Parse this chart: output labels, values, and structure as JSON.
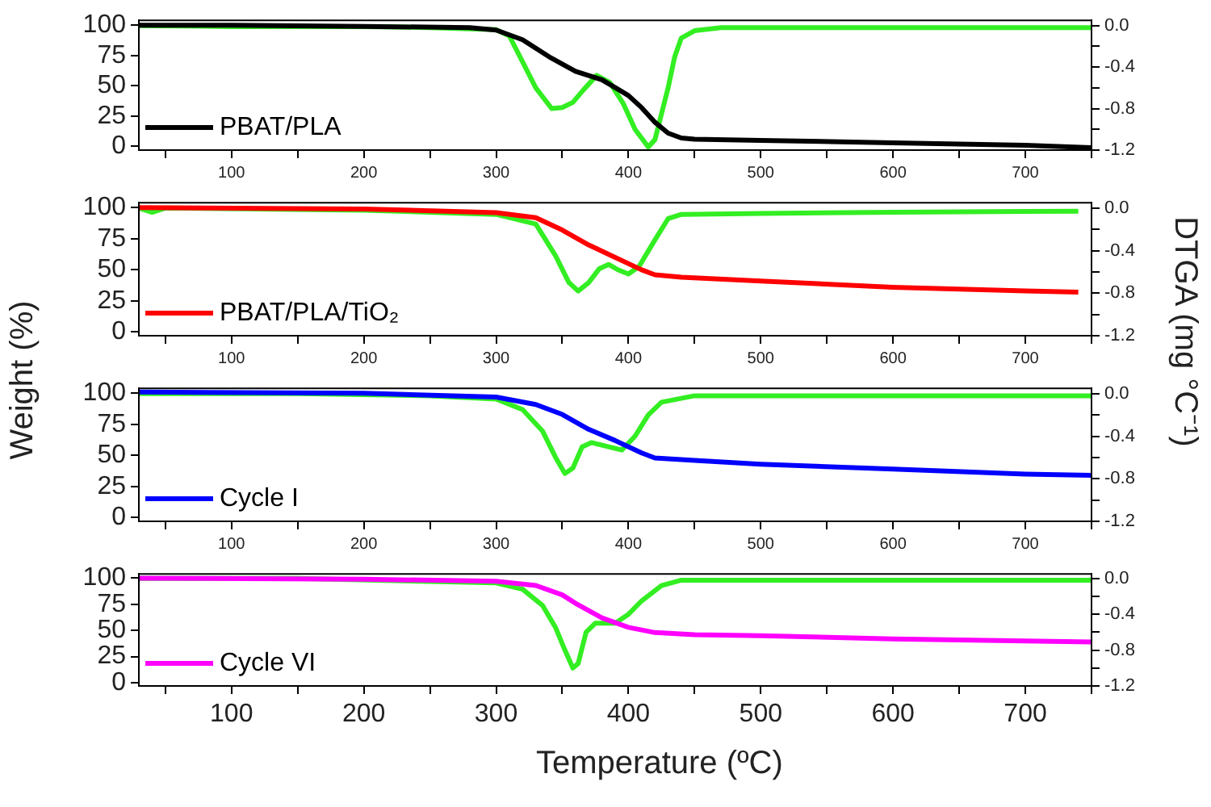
{
  "chart_data": [
    {
      "type": "line",
      "xlim": [
        30,
        750
      ],
      "ylim": [
        -3,
        104
      ],
      "y2lim": [
        -1.2,
        0.05
      ],
      "xticks": [
        {
          "value": 50,
          "label": null
        },
        100,
        {
          "value": 150,
          "label": null
        },
        200,
        {
          "value": 250,
          "label": null
        },
        300,
        {
          "value": 350,
          "label": null
        },
        400,
        {
          "value": 450,
          "label": null
        },
        500,
        {
          "value": 550,
          "label": null
        },
        600,
        {
          "value": 650,
          "label": null
        },
        700,
        {
          "value": 750,
          "label": null
        }
      ],
      "yticks": [
        0,
        25,
        50,
        75,
        100
      ],
      "y2ticks": [
        {
          "value": -1.2,
          "label": "-1.2"
        },
        {
          "value": -1.0,
          "label": null
        },
        {
          "value": -0.8,
          "label": "-0.8"
        },
        {
          "value": -0.6,
          "label": null
        },
        {
          "value": -0.4,
          "label": "-0.4"
        },
        {
          "value": -0.2,
          "label": null
        },
        {
          "value": 0,
          "label": "0.0"
        }
      ],
      "grid": false,
      "legend": "bottom left",
      "series": [
        {
          "name": "PBAT/PLA",
          "color": "#000000",
          "axis": "y",
          "x": [
            30,
            100,
            200,
            280,
            300,
            320,
            340,
            360,
            380,
            400,
            410,
            420,
            430,
            440,
            450,
            500,
            600,
            700,
            750
          ],
          "values": [
            100,
            100,
            99,
            98,
            96,
            88,
            74,
            62,
            55,
            42,
            32,
            20,
            11,
            7,
            6,
            5,
            3,
            1,
            -1
          ]
        },
        {
          "color": "#33ee22",
          "axis": "y2",
          "x": [
            30,
            100,
            200,
            250,
            300,
            310,
            320,
            330,
            342,
            350,
            358,
            366,
            376,
            386,
            396,
            405,
            415,
            420,
            430,
            435,
            440,
            450,
            470,
            500,
            600,
            700,
            750
          ],
          "values": [
            0,
            -0.01,
            -0.01,
            -0.02,
            -0.04,
            -0.1,
            -0.35,
            -0.6,
            -0.8,
            -0.79,
            -0.74,
            -0.62,
            -0.48,
            -0.55,
            -0.75,
            -1.0,
            -1.17,
            -1.1,
            -0.6,
            -0.3,
            -0.12,
            -0.05,
            -0.02,
            -0.02,
            -0.02,
            -0.02,
            -0.02
          ]
        }
      ]
    },
    {
      "type": "line",
      "xlim": [
        30,
        750
      ],
      "ylim": [
        -3,
        104
      ],
      "y2lim": [
        -1.2,
        0.05
      ],
      "xticks": [
        {
          "value": 50,
          "label": null
        },
        100,
        {
          "value": 150,
          "label": null
        },
        200,
        {
          "value": 250,
          "label": null
        },
        300,
        {
          "value": 350,
          "label": null
        },
        400,
        {
          "value": 450,
          "label": null
        },
        500,
        {
          "value": 550,
          "label": null
        },
        600,
        {
          "value": 650,
          "label": null
        },
        700,
        {
          "value": 750,
          "label": null
        }
      ],
      "yticks": [
        0,
        25,
        50,
        75,
        100
      ],
      "y2ticks": [
        {
          "value": -1.2,
          "label": "-1.2"
        },
        {
          "value": -1.0,
          "label": null
        },
        {
          "value": -0.8,
          "label": "-0.8"
        },
        {
          "value": -0.6,
          "label": null
        },
        {
          "value": -0.4,
          "label": "-0.4"
        },
        {
          "value": -0.2,
          "label": null
        },
        {
          "value": 0,
          "label": "0.0"
        }
      ],
      "grid": false,
      "legend": "bottom left",
      "ylabel": "Weight (%)",
      "y2label": "DTGA (mg °C⁻¹)",
      "series": [
        {
          "name": "PBAT/PLA/TiO₂",
          "color": "#ff0000",
          "axis": "y",
          "x": [
            30,
            200,
            300,
            330,
            350,
            370,
            390,
            410,
            420,
            440,
            500,
            600,
            700,
            740
          ],
          "values": [
            100,
            99,
            96,
            92,
            82,
            70,
            60,
            50,
            46,
            44,
            41,
            36,
            33,
            32
          ]
        },
        {
          "color": "#33ee22",
          "axis": "y2",
          "x": [
            30,
            40,
            50,
            200,
            300,
            330,
            345,
            355,
            362,
            370,
            378,
            385,
            392,
            400,
            408,
            420,
            430,
            440,
            500,
            600,
            740
          ],
          "values": [
            0,
            -0.04,
            0,
            -0.02,
            -0.06,
            -0.15,
            -0.45,
            -0.7,
            -0.78,
            -0.7,
            -0.57,
            -0.53,
            -0.58,
            -0.62,
            -0.55,
            -0.3,
            -0.1,
            -0.06,
            -0.05,
            -0.04,
            -0.03
          ]
        }
      ]
    },
    {
      "type": "line",
      "xlim": [
        30,
        750
      ],
      "ylim": [
        -3,
        104
      ],
      "y2lim": [
        -1.2,
        0.05
      ],
      "xticks": [
        {
          "value": 50,
          "label": null
        },
        100,
        {
          "value": 150,
          "label": null
        },
        200,
        {
          "value": 250,
          "label": null
        },
        300,
        {
          "value": 350,
          "label": null
        },
        400,
        {
          "value": 450,
          "label": null
        },
        500,
        {
          "value": 550,
          "label": null
        },
        600,
        {
          "value": 650,
          "label": null
        },
        700,
        {
          "value": 750,
          "label": null
        }
      ],
      "yticks": [
        0,
        25,
        50,
        75,
        100
      ],
      "y2ticks": [
        {
          "value": -1.2,
          "label": "-1.2"
        },
        {
          "value": -1.0,
          "label": null
        },
        {
          "value": -0.8,
          "label": "-0.8"
        },
        {
          "value": -0.6,
          "label": null
        },
        {
          "value": -0.4,
          "label": "-0.4"
        },
        {
          "value": -0.2,
          "label": null
        },
        {
          "value": 0,
          "label": "0.0"
        }
      ],
      "grid": false,
      "legend": "bottom left",
      "series": [
        {
          "name": "Cycle I",
          "color": "#0000ff",
          "axis": "y",
          "x": [
            30,
            200,
            300,
            330,
            350,
            370,
            390,
            410,
            420,
            450,
            500,
            600,
            700,
            750
          ],
          "values": [
            101,
            100,
            97,
            91,
            83,
            71,
            62,
            52,
            48,
            46,
            43,
            39,
            35,
            34
          ]
        },
        {
          "color": "#33ee22",
          "axis": "y2",
          "x": [
            30,
            150,
            250,
            300,
            320,
            335,
            345,
            352,
            358,
            365,
            372,
            385,
            395,
            405,
            415,
            425,
            450,
            600,
            750
          ],
          "values": [
            0,
            0,
            -0.02,
            -0.05,
            -0.15,
            -0.35,
            -0.6,
            -0.75,
            -0.7,
            -0.5,
            -0.46,
            -0.5,
            -0.53,
            -0.4,
            -0.2,
            -0.08,
            -0.02,
            -0.02,
            -0.02
          ]
        }
      ]
    },
    {
      "type": "line",
      "xlim": [
        30,
        750
      ],
      "ylim": [
        -3,
        104
      ],
      "y2lim": [
        -1.2,
        0.05
      ],
      "xlabel": "Temperature (ºC)",
      "xticks": [
        {
          "value": 50,
          "label": null
        },
        100,
        {
          "value": 150,
          "label": null
        },
        200,
        {
          "value": 250,
          "label": null
        },
        300,
        {
          "value": 350,
          "label": null
        },
        400,
        {
          "value": 450,
          "label": null
        },
        500,
        {
          "value": 550,
          "label": null
        },
        600,
        {
          "value": 650,
          "label": null
        },
        700,
        {
          "value": 750,
          "label": null
        }
      ],
      "yticks": [
        0,
        25,
        50,
        75,
        100
      ],
      "y2ticks": [
        {
          "value": -1.2,
          "label": "-1.2"
        },
        {
          "value": -1.0,
          "label": null
        },
        {
          "value": -0.8,
          "label": "-0.8"
        },
        {
          "value": -0.6,
          "label": null
        },
        {
          "value": -0.4,
          "label": "-0.4"
        },
        {
          "value": -0.2,
          "label": null
        },
        {
          "value": 0,
          "label": "0.0"
        }
      ],
      "grid": false,
      "legend": "bottom left",
      "series": [
        {
          "name": "Cycle VI",
          "color": "#ff00ff",
          "axis": "y",
          "x": [
            30,
            200,
            300,
            330,
            350,
            360,
            380,
            400,
            420,
            450,
            500,
            600,
            700,
            750
          ],
          "values": [
            100,
            99,
            97,
            93,
            84,
            76,
            62,
            53,
            48,
            46,
            45,
            42,
            40,
            39
          ]
        },
        {
          "color": "#33ee22",
          "axis": "y2",
          "x": [
            30,
            150,
            300,
            320,
            335,
            345,
            352,
            358,
            362,
            368,
            375,
            390,
            400,
            410,
            425,
            440,
            600,
            750
          ],
          "values": [
            0,
            0,
            -0.05,
            -0.12,
            -0.3,
            -0.55,
            -0.8,
            -1.0,
            -0.95,
            -0.6,
            -0.5,
            -0.5,
            -0.4,
            -0.25,
            -0.08,
            -0.02,
            -0.02,
            -0.02
          ]
        }
      ]
    }
  ]
}
